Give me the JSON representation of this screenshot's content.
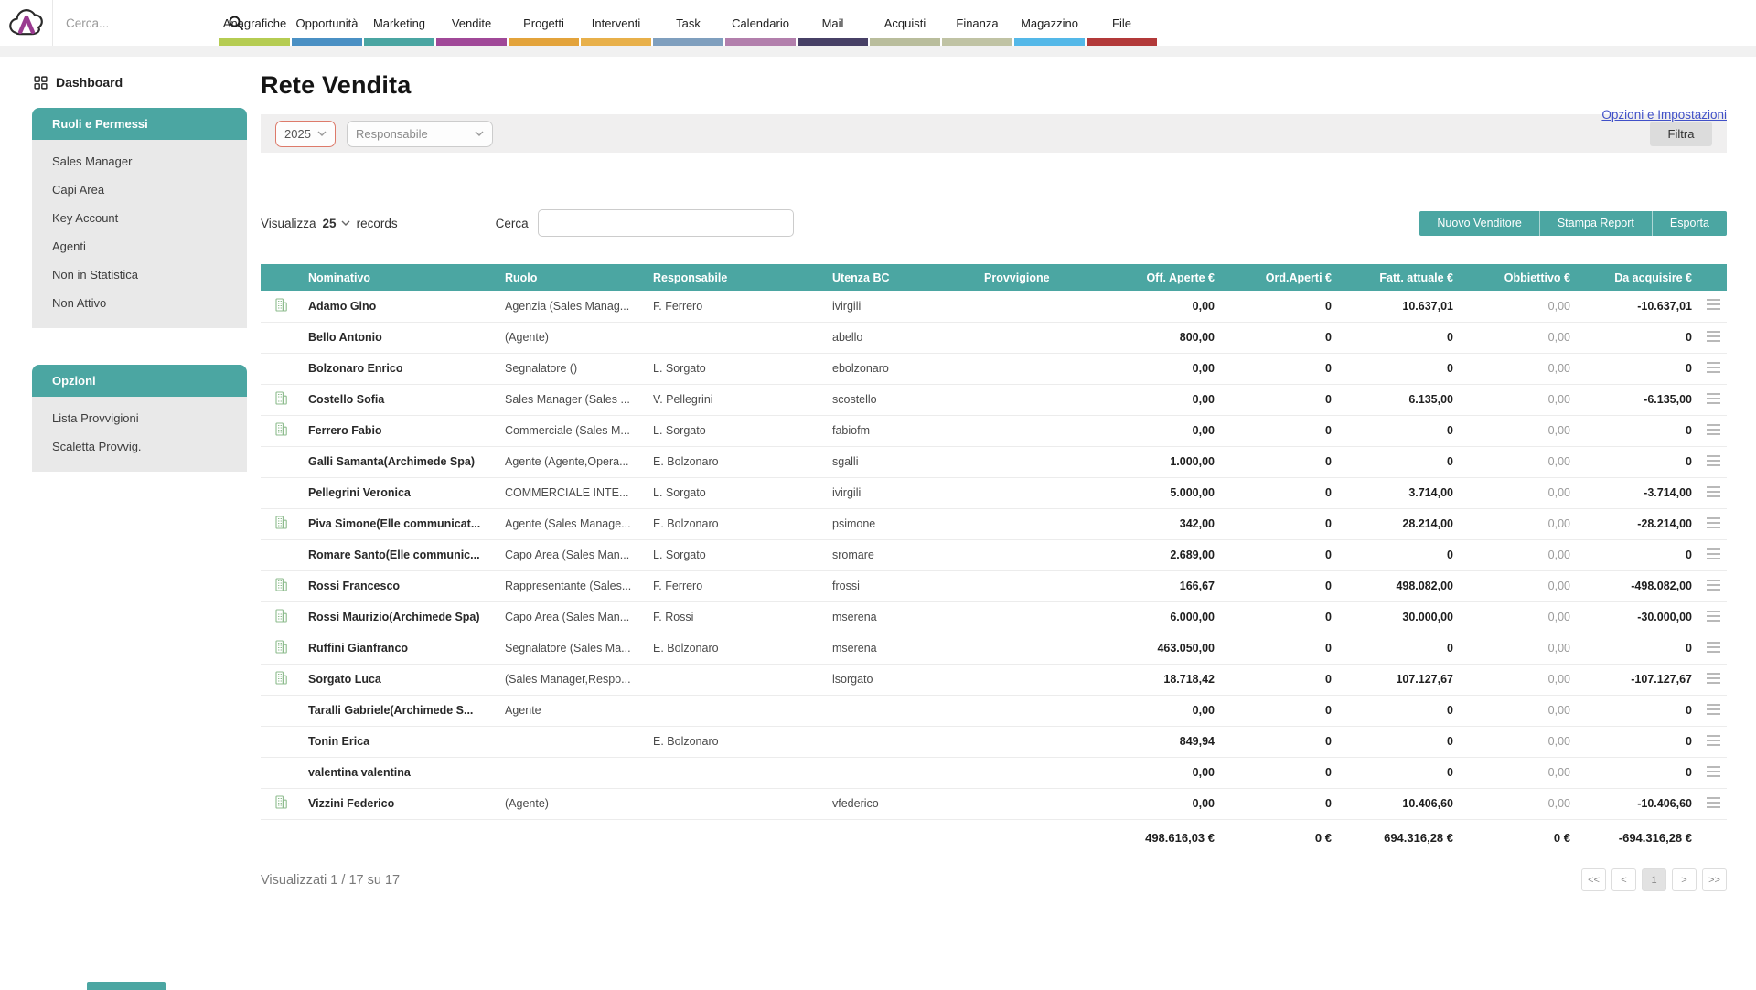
{
  "colors": {
    "accent_teal": "#4BA6A2",
    "link_blue": "#4050C8",
    "year_select_border": "#DD7A6A",
    "file_red": "#B23939"
  },
  "icons": {
    "logo": "cloud-a-logo",
    "search": "magnifier",
    "dashboard": "grid-squares",
    "company_row": "green-building",
    "row_actions": "hamburger-menu",
    "select_arrow": "chevron-down"
  },
  "topbar": {
    "search_placeholder": "Cerca...",
    "nav": [
      {
        "label": "Anagrafiche",
        "color": "#b5cc52"
      },
      {
        "label": "Opportunità",
        "color": "#4a90c4"
      },
      {
        "label": "Marketing",
        "color": "#4aa5a2"
      },
      {
        "label": "Vendite",
        "color": "#a04898"
      },
      {
        "label": "Progetti",
        "color": "#e3a33b"
      },
      {
        "label": "Interventi",
        "color": "#e8b04a"
      },
      {
        "label": "Task",
        "color": "#7f9fbe"
      },
      {
        "label": "Calendario",
        "color": "#b27fac"
      },
      {
        "label": "Mail",
        "color": "#474066"
      },
      {
        "label": "Acquisti",
        "color": "#b9bd9c"
      },
      {
        "label": "Finanza",
        "color": "#c0c3a4"
      },
      {
        "label": "Magazzino",
        "color": "#54b8e8"
      },
      {
        "label": "File",
        "color": "#b23939"
      }
    ]
  },
  "sidebar": {
    "dashboard_label": "Dashboard",
    "sections": [
      {
        "title": "Ruoli e Permessi",
        "items": [
          "Sales Manager",
          "Capi Area",
          "Key Account",
          "Agenti",
          "Non in Statistica",
          "Non Attivo"
        ]
      },
      {
        "title": "Opzioni",
        "items": [
          "Lista Provvigioni",
          "Scaletta Provvig."
        ]
      }
    ]
  },
  "main": {
    "title": "Rete Vendita",
    "settings_link": "Opzioni e Impostazioni",
    "filters": {
      "year": "2025",
      "responsabile_placeholder": "Responsabile",
      "filter_button": "Filtra"
    },
    "toolbar": {
      "show_label": "Visualizza",
      "page_size": "25",
      "records_label": "records",
      "search_label": "Cerca",
      "search_value": "",
      "buttons": [
        "Nuovo Venditore",
        "Stampa Report",
        "Esporta"
      ]
    }
  },
  "table": {
    "columns": [
      "Nominativo",
      "Ruolo",
      "Responsabile",
      "Utenza BC",
      "Provvigione",
      "Off. Aperte €",
      "Ord.Aperti €",
      "Fatt. attuale €",
      "Obbiettivo €",
      "Da acquisire €"
    ],
    "rows": [
      {
        "icon": true,
        "name": "Adamo Gino",
        "role": "Agenzia (Sales Manag...",
        "manager": "F. Ferrero",
        "bc": "ivirgili",
        "comm": "",
        "off": "0,00",
        "ord": "0",
        "fatt": "10.637,01",
        "obb": "0,00",
        "da": "-10.637,01"
      },
      {
        "icon": false,
        "name": "Bello Antonio",
        "role": "(Agente)",
        "manager": "",
        "bc": "abello",
        "comm": "",
        "off": "800,00",
        "ord": "0",
        "fatt": "0",
        "obb": "0,00",
        "da": "0"
      },
      {
        "icon": false,
        "name": "Bolzonaro Enrico",
        "role": "Segnalatore ()",
        "manager": "L. Sorgato",
        "bc": "ebolzonaro",
        "comm": "",
        "off": "0,00",
        "ord": "0",
        "fatt": "0",
        "obb": "0,00",
        "da": "0"
      },
      {
        "icon": true,
        "name": "Costello Sofia",
        "role": "Sales Manager (Sales ...",
        "manager": "V. Pellegrini",
        "bc": "scostello",
        "comm": "",
        "off": "0,00",
        "ord": "0",
        "fatt": "6.135,00",
        "obb": "0,00",
        "da": "-6.135,00"
      },
      {
        "icon": true,
        "name": "Ferrero Fabio",
        "role": "Commerciale (Sales M...",
        "manager": "L. Sorgato",
        "bc": "fabiofm",
        "comm": "",
        "off": "0,00",
        "ord": "0",
        "fatt": "0",
        "obb": "0,00",
        "da": "0"
      },
      {
        "icon": false,
        "name": "Galli Samanta(Archimede Spa)",
        "role": "Agente (Agente,Opera...",
        "manager": "E. Bolzonaro",
        "bc": "sgalli",
        "comm": "",
        "off": "1.000,00",
        "ord": "0",
        "fatt": "0",
        "obb": "0,00",
        "da": "0"
      },
      {
        "icon": false,
        "name": "Pellegrini Veronica",
        "role": "COMMERCIALE INTE...",
        "manager": "L. Sorgato",
        "bc": "ivirgili",
        "comm": "",
        "off": "5.000,00",
        "ord": "0",
        "fatt": "3.714,00",
        "obb": "0,00",
        "da": "-3.714,00"
      },
      {
        "icon": true,
        "name": "Piva Simone(Elle communicat...",
        "role": "Agente (Sales Manage...",
        "manager": "E. Bolzonaro",
        "bc": "psimone",
        "comm": "",
        "off": "342,00",
        "ord": "0",
        "fatt": "28.214,00",
        "obb": "0,00",
        "da": "-28.214,00"
      },
      {
        "icon": false,
        "name": "Romare Santo(Elle communic...",
        "role": "Capo Area (Sales Man...",
        "manager": "L. Sorgato",
        "bc": "sromare",
        "comm": "",
        "off": "2.689,00",
        "ord": "0",
        "fatt": "0",
        "obb": "0,00",
        "da": "0"
      },
      {
        "icon": true,
        "name": "Rossi Francesco",
        "role": "Rappresentante (Sales...",
        "manager": "F. Ferrero",
        "bc": "frossi",
        "comm": "",
        "off": "166,67",
        "ord": "0",
        "fatt": "498.082,00",
        "obb": "0,00",
        "da": "-498.082,00"
      },
      {
        "icon": true,
        "name": "Rossi Maurizio(Archimede Spa)",
        "role": "Capo Area (Sales Man...",
        "manager": "F. Rossi",
        "bc": "mserena",
        "comm": "",
        "off": "6.000,00",
        "ord": "0",
        "fatt": "30.000,00",
        "obb": "0,00",
        "da": "-30.000,00"
      },
      {
        "icon": true,
        "name": "Ruffini Gianfranco",
        "role": "Segnalatore (Sales Ma...",
        "manager": "E. Bolzonaro",
        "bc": "mserena",
        "comm": "",
        "off": "463.050,00",
        "ord": "0",
        "fatt": "0",
        "obb": "0,00",
        "da": "0"
      },
      {
        "icon": true,
        "name": "Sorgato Luca",
        "role": "(Sales Manager,Respo...",
        "manager": "",
        "bc": "lsorgato",
        "comm": "",
        "off": "18.718,42",
        "ord": "0",
        "fatt": "107.127,67",
        "obb": "0,00",
        "da": "-107.127,67"
      },
      {
        "icon": false,
        "name": "Taralli Gabriele(Archimede S...",
        "role": "Agente",
        "manager": "",
        "bc": "",
        "comm": "",
        "off": "0,00",
        "ord": "0",
        "fatt": "0",
        "obb": "0,00",
        "da": "0"
      },
      {
        "icon": false,
        "name": "Tonin Erica",
        "role": "",
        "manager": "E. Bolzonaro",
        "bc": "",
        "comm": "",
        "off": "849,94",
        "ord": "0",
        "fatt": "0",
        "obb": "0,00",
        "da": "0"
      },
      {
        "icon": false,
        "name": "valentina valentina",
        "role": "",
        "manager": "",
        "bc": "",
        "comm": "",
        "off": "0,00",
        "ord": "0",
        "fatt": "0",
        "obb": "0,00",
        "da": "0"
      },
      {
        "icon": true,
        "name": "Vizzini Federico",
        "role": "(Agente)",
        "manager": "",
        "bc": "vfederico",
        "comm": "",
        "off": "0,00",
        "ord": "0",
        "fatt": "10.406,60",
        "obb": "0,00",
        "da": "-10.406,60"
      }
    ],
    "totals": {
      "off": "498.616,03 €",
      "ord": "0 €",
      "fatt": "694.316,28 €",
      "obb": "0 €",
      "da": "-694.316,28 €"
    }
  },
  "footer": {
    "summary": "Visualizzati 1 / 17 su 17",
    "pagination": [
      "<<",
      "<",
      "1",
      ">",
      ">>"
    ],
    "active_page": "1"
  }
}
